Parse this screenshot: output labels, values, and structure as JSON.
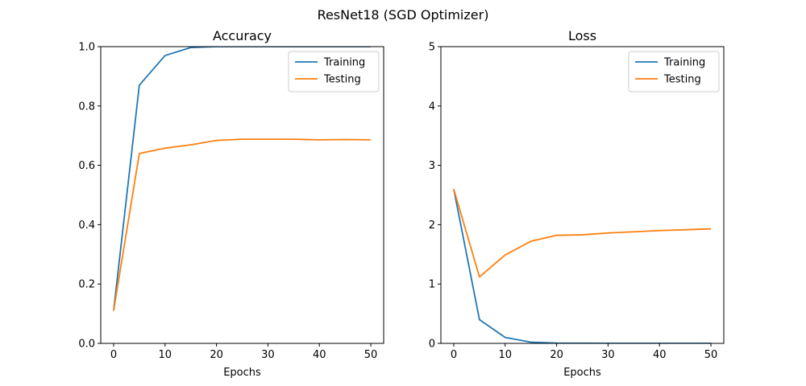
{
  "figure": {
    "title": "ResNet18 (SGD Optimizer)"
  },
  "chart_data": [
    {
      "type": "line",
      "title": "Accuracy",
      "xlabel": "Epochs",
      "ylabel": "",
      "xlim": [
        -2.5,
        52.5
      ],
      "ylim": [
        0,
        1
      ],
      "xticks": [
        0,
        10,
        20,
        30,
        40,
        50
      ],
      "yticks": [
        0.0,
        0.2,
        0.4,
        0.6,
        0.8,
        1.0
      ],
      "ytick_labels": [
        "0.0",
        "0.2",
        "0.4",
        "0.6",
        "0.8",
        "1.0"
      ],
      "grid": false,
      "legend": "top-right",
      "x": [
        0,
        5,
        10,
        15,
        20,
        25,
        30,
        35,
        40,
        45,
        50
      ],
      "series": [
        {
          "name": "Training",
          "color": "#1f77b4",
          "values": [
            0.11,
            0.87,
            0.97,
            0.997,
            1.0,
            1.0,
            1.0,
            1.0,
            1.0,
            1.0,
            1.0
          ]
        },
        {
          "name": "Testing",
          "color": "#ff7f0e",
          "values": [
            0.11,
            0.64,
            0.658,
            0.669,
            0.684,
            0.688,
            0.688,
            0.688,
            0.686,
            0.687,
            0.686
          ]
        }
      ]
    },
    {
      "type": "line",
      "title": "Loss",
      "xlabel": "Epochs",
      "ylabel": "",
      "xlim": [
        -2.5,
        52.5
      ],
      "ylim": [
        0,
        5
      ],
      "xticks": [
        0,
        10,
        20,
        30,
        40,
        50
      ],
      "yticks": [
        0,
        1,
        2,
        3,
        4,
        5
      ],
      "ytick_labels": [
        "0",
        "1",
        "2",
        "3",
        "4",
        "5"
      ],
      "grid": false,
      "legend": "top-right",
      "x": [
        0,
        5,
        10,
        15,
        20,
        25,
        30,
        35,
        40,
        45,
        50
      ],
      "series": [
        {
          "name": "Training",
          "color": "#1f77b4",
          "values": [
            2.6,
            0.4,
            0.1,
            0.02,
            0.005,
            0.003,
            0.002,
            0.002,
            0.001,
            0.001,
            0.001
          ]
        },
        {
          "name": "Testing",
          "color": "#ff7f0e",
          "values": [
            2.6,
            1.12,
            1.49,
            1.72,
            1.82,
            1.83,
            1.86,
            1.88,
            1.9,
            1.915,
            1.93
          ]
        }
      ]
    }
  ]
}
